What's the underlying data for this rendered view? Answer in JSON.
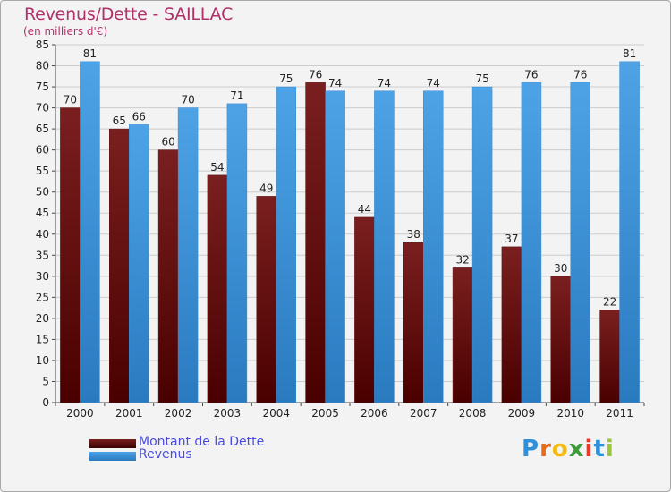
{
  "header": {
    "title": "Revenus/Dette - SAILLAC",
    "subtitle": "(en milliers d'€)"
  },
  "logo": {
    "letters": [
      "P",
      "r",
      "o",
      "x",
      "i",
      "t",
      "i"
    ],
    "colors": [
      "#2f8fd8",
      "#e86a1a",
      "#f5b90f",
      "#3a9d3a",
      "#e83a2a",
      "#2f8fd8",
      "#9bc53d"
    ]
  },
  "colors": {
    "debt": "#7a1f1f",
    "revenue": "#4da3e6",
    "grid": "#cccccc"
  },
  "chart_data": {
    "type": "bar",
    "title": "Revenus/Dette - SAILLAC",
    "subtitle": "(en milliers d'€)",
    "categories": [
      "2000",
      "2001",
      "2002",
      "2003",
      "2004",
      "2005",
      "2006",
      "2007",
      "2008",
      "2009",
      "2010",
      "2011"
    ],
    "series": [
      {
        "name": "Montant de la Dette",
        "values": [
          70,
          65,
          60,
          54,
          49,
          76,
          44,
          38,
          32,
          37,
          30,
          22
        ]
      },
      {
        "name": "Revenus",
        "values": [
          81,
          66,
          70,
          71,
          75,
          74,
          74,
          74,
          75,
          76,
          76,
          81
        ]
      }
    ],
    "ylim": [
      0,
      85
    ],
    "yticks": [
      0,
      5,
      10,
      15,
      20,
      25,
      30,
      35,
      40,
      45,
      50,
      55,
      60,
      65,
      70,
      75,
      80,
      85
    ],
    "grid": true,
    "legend": "bottom-left"
  }
}
